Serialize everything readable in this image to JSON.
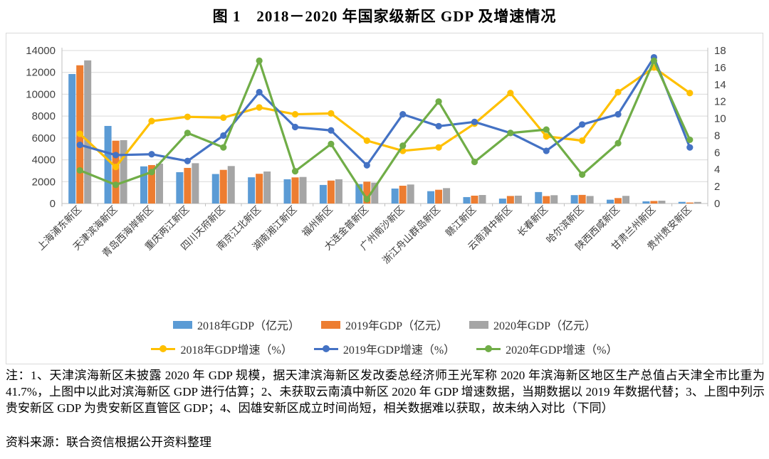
{
  "title": "图 1　2018－2020 年国家级新区 GDP 及增速情况",
  "notes": {
    "note": "注：1、天津滨海新区未披露 2020 年 GDP 规模，据天津滨海新区发改委总经济师王光军称 2020 年滨海新区地区生产总值占天津全市比重为 41.7%，上图中以此对滨海新区 GDP 进行估算；2、未获取云南滇中新区 2020 年 GDP 增速数据，当期数据以 2019 年数据代替；3、上图中列示贵安新区 GDP 为贵安新区直管区 GDP；4、因雄安新区成立时间尚短，相关数据难以获取，故未纳入对比（下同）",
    "source": "资料来源：联合资信根据公开资料整理"
  },
  "chart_data": {
    "type": "bar+line",
    "title": "图 1　2018－2020 年国家级新区 GDP 及增速情况",
    "categories": [
      "上海浦东新区",
      "天津滨海新区",
      "青岛西海岸新区",
      "重庆两江新区",
      "四川天府新区",
      "南京江北新区",
      "湖南湘江新区",
      "福州新区",
      "大连金普新区",
      "广州南沙新区",
      "浙江舟山群岛新区",
      "赣江新区",
      "云南滇中新区",
      "长春新区",
      "哈尔滨新区",
      "陕西西咸新区",
      "甘肃兰州新区",
      "贵州贵安新区"
    ],
    "left_axis": {
      "min": 0,
      "max": 14000,
      "step": 2000,
      "ticks": [
        "0",
        "2000",
        "4000",
        "6000",
        "8000",
        "10000",
        "12000",
        "14000"
      ]
    },
    "right_axis": {
      "min": 0,
      "max": 18,
      "step": 2,
      "ticks": [
        "0",
        "2",
        "4",
        "6",
        "8",
        "10",
        "12",
        "14",
        "16",
        "18"
      ]
    },
    "grid": "horizontal",
    "legend_position": "bottom",
    "bar_series": [
      {
        "name": "2018年GDP（亿元）",
        "color": "#5B9BD5",
        "values": [
          11850,
          7100,
          3400,
          2870,
          2700,
          2400,
          2220,
          1700,
          1780,
          1370,
          1130,
          590,
          450,
          1050,
          770,
          350,
          200,
          150
        ]
      },
      {
        "name": "2019年GDP（亿元）",
        "color": "#ED7D31",
        "values": [
          12650,
          5750,
          3520,
          3260,
          3080,
          2720,
          2390,
          2100,
          2000,
          1630,
          1260,
          720,
          690,
          680,
          790,
          500,
          235,
          90
        ]
      },
      {
        "name": "2020年GDP（亿元）",
        "color": "#A5A5A5",
        "values": [
          13100,
          5800,
          3650,
          3690,
          3430,
          2930,
          2430,
          2220,
          1910,
          1740,
          1410,
          780,
          720,
          760,
          690,
          700,
          260,
          145
        ]
      }
    ],
    "line_series": [
      {
        "name": "2018年GDP增速（%）",
        "color": "#FFC000",
        "values": [
          8.2,
          4.3,
          9.7,
          10.2,
          10.1,
          11.3,
          10.5,
          10.6,
          7.4,
          6.2,
          6.6,
          9.4,
          13.0,
          7.9,
          7.4,
          13.1,
          16.0,
          13.0
        ]
      },
      {
        "name": "2019年GDP增速（%）",
        "color": "#4472C4",
        "values": [
          6.9,
          5.7,
          5.8,
          5.0,
          8.0,
          13.1,
          9.0,
          8.6,
          4.5,
          10.5,
          9.1,
          9.6,
          8.3,
          6.2,
          9.3,
          10.5,
          17.2,
          6.6
        ]
      },
      {
        "name": "2020年GDP增速（%）",
        "color": "#70AD47",
        "values": [
          3.9,
          2.2,
          3.7,
          8.3,
          6.6,
          16.8,
          3.8,
          7.0,
          0.5,
          6.8,
          12.0,
          4.9,
          8.3,
          8.7,
          3.4,
          7.1,
          16.8,
          7.5
        ]
      }
    ]
  }
}
